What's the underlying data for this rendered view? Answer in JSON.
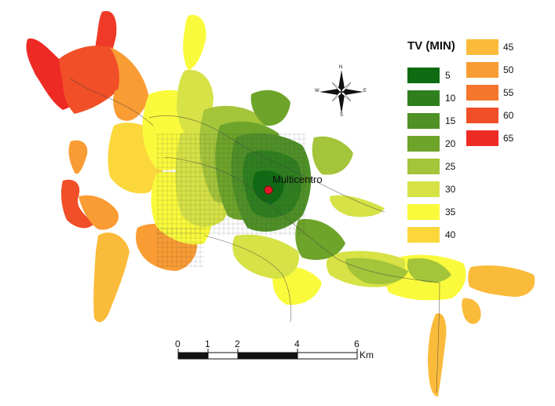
{
  "legend": {
    "title": "TV (MIN)",
    "classes": [
      {
        "label": "5",
        "color": "#0e6b12"
      },
      {
        "label": "10",
        "color": "#2f7f1f"
      },
      {
        "label": "15",
        "color": "#4f9126"
      },
      {
        "label": "20",
        "color": "#6ea42a"
      },
      {
        "label": "25",
        "color": "#a4c43a"
      },
      {
        "label": "30",
        "color": "#d6e245"
      },
      {
        "label": "35",
        "color": "#fafa3c"
      },
      {
        "label": "40",
        "color": "#fbd73c"
      },
      {
        "label": "45",
        "color": "#fbbb3a"
      },
      {
        "label": "50",
        "color": "#f99c34"
      },
      {
        "label": "55",
        "color": "#f6762d"
      },
      {
        "label": "60",
        "color": "#f14f28"
      },
      {
        "label": "65",
        "color": "#ee2a24"
      }
    ]
  },
  "poi": {
    "label": "Multicentro",
    "color": "#e8182a"
  },
  "scale_bar": {
    "ticks": [
      "0",
      "1",
      "2",
      "4",
      "6"
    ],
    "unit": "Km"
  },
  "compass": {
    "n": "N",
    "s": "S",
    "e": "E",
    "w": "W"
  }
}
